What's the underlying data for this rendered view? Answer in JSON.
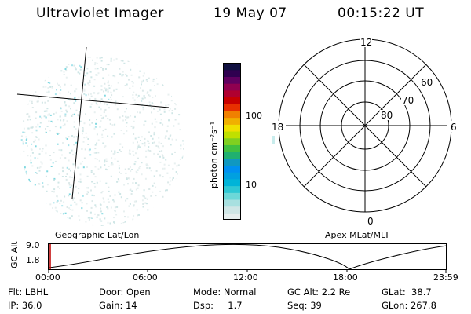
{
  "header": {
    "instrument": "Ultraviolet Imager",
    "date": "19 May 07",
    "time": "00:15:22 UT"
  },
  "colorbar": {
    "unit_label": "photon cm⁻²s⁻¹",
    "ticks": [
      "100",
      "10"
    ],
    "colors": [
      "#e6eeee",
      "#cfe6e6",
      "#a8e0e0",
      "#6cd8d8",
      "#2ec8d4",
      "#00b4d8",
      "#00a0e0",
      "#0090f0",
      "#1098c0",
      "#20b070",
      "#40c040",
      "#80d020",
      "#c0e000",
      "#f0e000",
      "#f0b000",
      "#f08000",
      "#e83000",
      "#c80000",
      "#b00030",
      "#900050",
      "#600060",
      "#300050",
      "#101040"
    ]
  },
  "polar": {
    "lat_labels": [
      "80",
      "70",
      "60"
    ],
    "mlt_labels": {
      "top": "12",
      "left": "18",
      "right": "6",
      "bottom": "0"
    }
  },
  "timeline": {
    "left_title": "Geographic Lat/Lon",
    "right_title": "Apex MLat/MLT",
    "ylabel": "GC Alt",
    "y_ticks": [
      "9.0",
      "1.8"
    ],
    "x_ticks": [
      "00:00",
      "06:00",
      "12:00",
      "18:00",
      "23:59"
    ]
  },
  "info": {
    "row1": {
      "flt": "Flt: LBHL",
      "door": "Door: Open",
      "mode": "Mode: Normal",
      "gcalt": "GC Alt: 2.2 Re",
      "glat": "GLat:  38.7"
    },
    "row2": {
      "ip": "IP: 36.0",
      "gain": "Gain: 14",
      "dsp": "Dsp:     1.7",
      "seq": "Seq: 39",
      "glon": "GLon: 267.8"
    }
  }
}
